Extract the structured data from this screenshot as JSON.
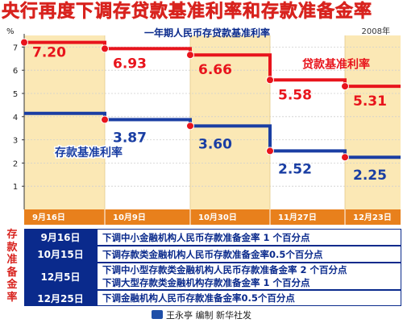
{
  "headline": "央行再度下调存贷款基准利率和存款准备金率",
  "chart_data": {
    "type": "line",
    "subtype": "step",
    "title": "一年期人民币存贷款基准利率",
    "year_note": "2008年",
    "y_unit": "%",
    "ylim": [
      0,
      7.5
    ],
    "y_ticks": [
      "1",
      "2",
      "3",
      "4",
      "5",
      "6",
      "7"
    ],
    "categories": [
      "9月16日",
      "10月9日",
      "10月30日",
      "11月27日",
      "12月23日"
    ],
    "series": [
      {
        "name": "贷款基准利率",
        "color": "#e8141c",
        "values": [
          7.2,
          6.93,
          6.66,
          5.58,
          5.31
        ],
        "labels": [
          "7.20",
          "6.93",
          "6.66",
          "5.58",
          "5.31"
        ]
      },
      {
        "name": "存款基准利率",
        "color": "#1a3ea3",
        "values": [
          4.14,
          3.87,
          3.6,
          2.52,
          2.25
        ],
        "labels": [
          "",
          "3.87",
          "3.60",
          "2.52",
          "2.25"
        ]
      }
    ],
    "grid": true,
    "colors": {
      "band": "#fbe8b5",
      "category_bar": "#e8801c",
      "plot_bg": "#ffffff"
    }
  },
  "reserve_table": {
    "label": "存款准备金率",
    "rows": [
      {
        "date": "9月16日",
        "lines": [
          "下调中小金融机构人民币存款准备金率 1 个百分点"
        ]
      },
      {
        "date": "10月15日",
        "lines": [
          "下调存款类金融机构人民币存款准备金率0.5个百分点"
        ]
      },
      {
        "date": "12月5日",
        "lines": [
          "下调中小型存款类金融机构人民币存款准备金率 2 个百分点",
          "下调大型存款类金融机构存款准备金率 1 个百分点"
        ]
      },
      {
        "date": "12月25日",
        "lines": [
          "下调金融机构人民币存款准备金率0.5个百分点"
        ]
      }
    ]
  },
  "credit": "王永亭 编制  新华社发"
}
